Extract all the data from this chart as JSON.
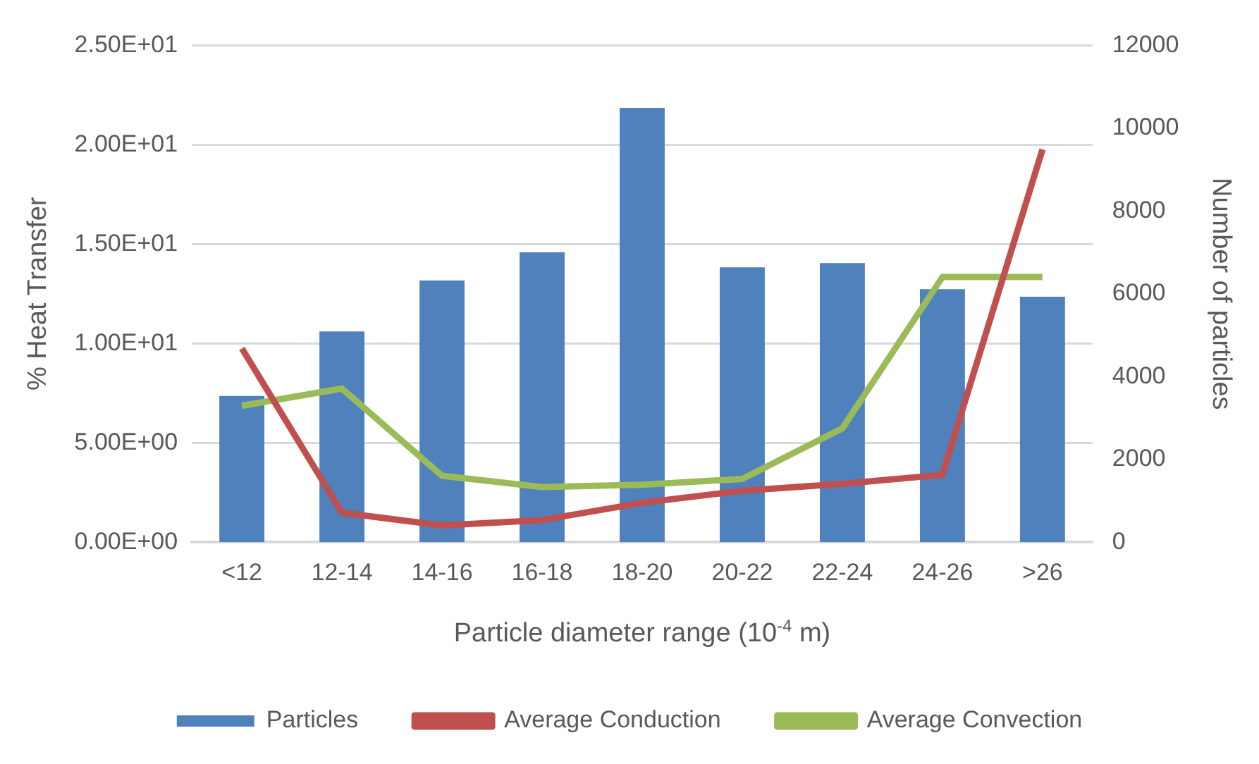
{
  "chart_data": {
    "type": "bar",
    "xlabel": "Particle diameter range (10$^{-4}$ m)",
    "ylabel": "% Heat Transfer",
    "y2label": "Number of particles",
    "categories": [
      "<12",
      "12-14",
      "14-16",
      "16-18",
      "18-20",
      "20-22",
      "22-24",
      "24-26",
      ">26"
    ],
    "series": [
      {
        "name": "Particles",
        "axis": "y2",
        "color": "#4f81bd",
        "values": [
          3530,
          5090,
          6320,
          7000,
          10490,
          6640,
          6740,
          6110,
          5930
        ]
      },
      {
        "name": "Average Conduction",
        "type": "line",
        "color": "#c0504d",
        "values": [
          9.75,
          1.48,
          0.84,
          1.11,
          1.98,
          2.59,
          2.93,
          3.39,
          19.77
        ]
      },
      {
        "name": "Average Convection",
        "type": "line",
        "color": "#9bbb59",
        "values": [
          6.86,
          7.73,
          3.34,
          2.77,
          2.89,
          3.18,
          5.73,
          13.34,
          13.34
        ]
      }
    ],
    "ylim": [
      0,
      25
    ],
    "yticks": [
      {
        "value": 0,
        "label": "0.00E+00"
      },
      {
        "value": 5,
        "label": "5.00E+00"
      },
      {
        "value": 10,
        "label": "1.00E+01"
      },
      {
        "value": 15,
        "label": "1.50E+01"
      },
      {
        "value": 20,
        "label": "2.00E+01"
      },
      {
        "value": 25,
        "label": "2.50E+01"
      }
    ],
    "y2lim": [
      0,
      12000
    ],
    "y2ticks": [
      0,
      2000,
      4000,
      6000,
      8000,
      10000,
      12000
    ],
    "grid": "y",
    "legend": "bottom",
    "marker": "none",
    "line_style": "solid"
  }
}
